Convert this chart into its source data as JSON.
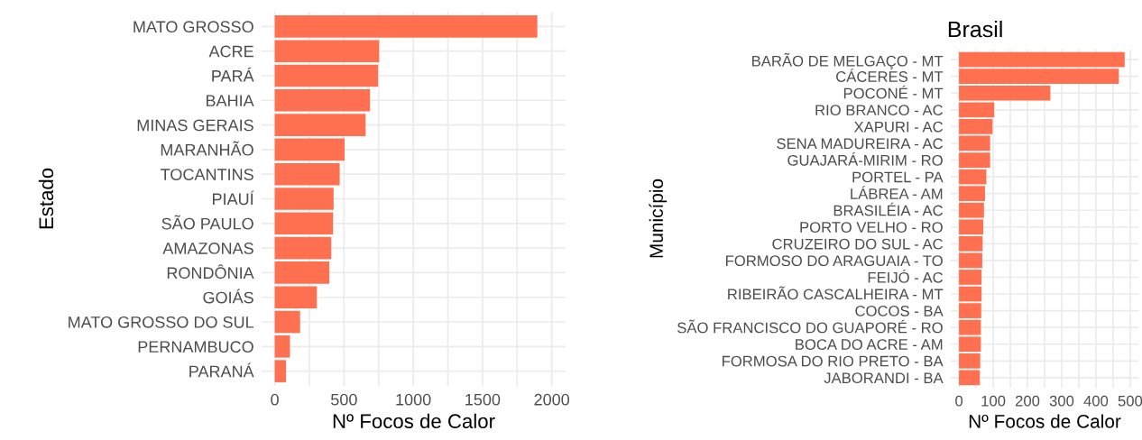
{
  "chart_data": [
    {
      "type": "bar",
      "orientation": "horizontal",
      "ylabel": "Estado",
      "xlabel": "Nº Focos de Calor",
      "categories": [
        "MATO GROSSO",
        "ACRE",
        "PARÁ",
        "BAHIA",
        "MINAS GERAIS",
        "MARANHÃO",
        "TOCANTINS",
        "PIAUÍ",
        "SÃO PAULO",
        "AMAZONAS",
        "RONDÔNIA",
        "GOIÁS",
        "MATO GROSSO DO SUL",
        "PERNAMBUCO",
        "PARANÁ"
      ],
      "values": [
        1896,
        754,
        746,
        688,
        656,
        504,
        469,
        425,
        421,
        408,
        394,
        304,
        183,
        110,
        81
      ],
      "color": "#ff7050",
      "xlim": [
        -95,
        2100
      ],
      "xticks": [
        0,
        {
          "value": 250,
          "label": null
        },
        500,
        {
          "value": 750,
          "label": null
        },
        1000,
        {
          "value": 1250,
          "label": null
        },
        1500,
        {
          "value": 1750,
          "label": null
        },
        2000
      ],
      "grid": true
    },
    {
      "type": "bar",
      "orientation": "horizontal",
      "title": "Brasil",
      "ylabel": "Município",
      "xlabel": "Nº Focos de Calor",
      "categories": [
        "BARÃO DE MELGAÇO - MT",
        "CÁCERES - MT",
        "POCONÉ - MT",
        "RIO BRANCO - AC",
        "XAPURI - AC",
        "SENA MADUREIRA - AC",
        "GUAJARÁ-MIRIM - RO",
        "PORTEL - PA",
        "LÁBREA - AM",
        "BRASILÉIA - AC",
        "PORTO VELHO - RO",
        "CRUZEIRO DO SUL - AC",
        "FORMOSO DO ARAGUAIA - TO",
        "FEIJÓ - AC",
        "RIBEIRÃO CASCALHEIRA - MT",
        "COCOS - BA",
        "SÃO FRANCISCO DO GUAPORÉ - RO",
        "BOCA DO ACRE - AM",
        "FORMOSA DO RIO PRETO - BA",
        "JABORANDI - BA"
      ],
      "values": [
        484,
        467,
        267,
        103,
        98,
        91,
        91,
        80,
        76,
        73,
        71,
        69,
        68,
        66,
        66,
        65,
        64,
        64,
        62,
        61
      ],
      "color": "#ff7050",
      "xlim": [
        -24,
        524
      ],
      "xticks": [
        0,
        {
          "value": 50,
          "label": null
        },
        100,
        {
          "value": 150,
          "label": null
        },
        200,
        {
          "value": 250,
          "label": null
        },
        300,
        {
          "value": 350,
          "label": null
        },
        400,
        {
          "value": 450,
          "label": null
        },
        500
      ],
      "grid": true
    }
  ]
}
